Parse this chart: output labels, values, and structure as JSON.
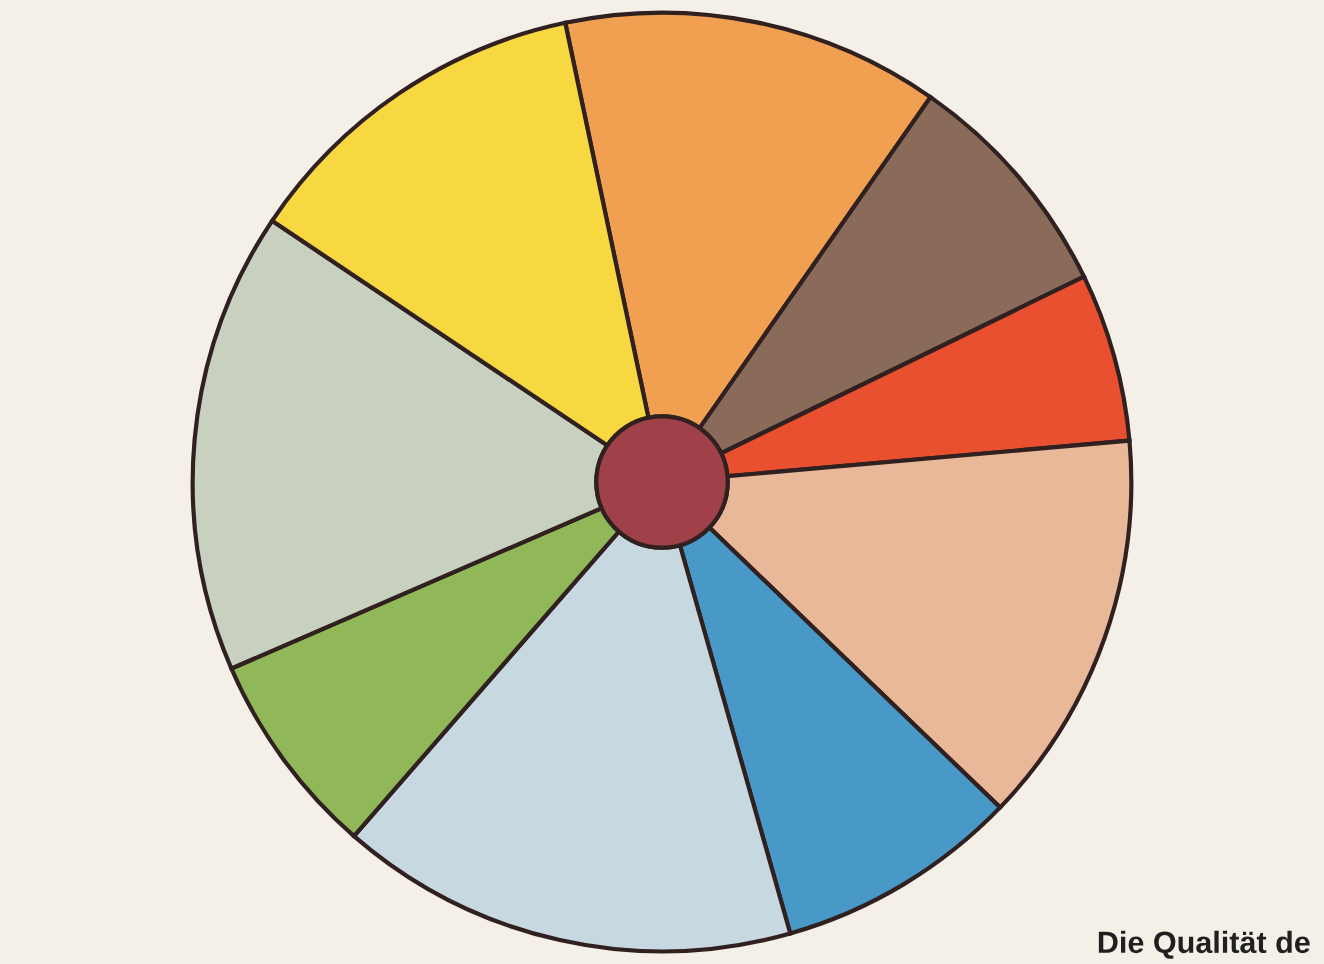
{
  "chart_data": {
    "type": "donut",
    "categories": [
      null,
      null,
      null,
      null,
      null,
      null,
      null,
      null,
      null
    ],
    "values": [
      13.0,
      8.1,
      5.8,
      13.6,
      8.4,
      15.8,
      7.1,
      15.9,
      12.3
    ],
    "colors": [
      "#f0a050",
      "#8a6a58",
      "#e85030",
      "#e8b898",
      "#4898c8",
      "#c8d8e0",
      "#90b858",
      "#c8d0c0",
      "#f8d840"
    ],
    "annotations": [
      "Die Qualität de"
    ]
  }
}
